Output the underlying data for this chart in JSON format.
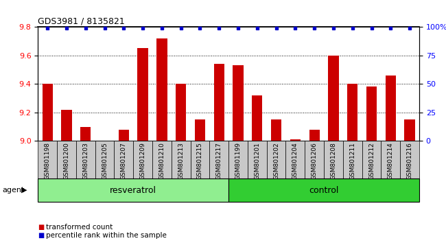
{
  "title": "GDS3981 / 8135821",
  "samples": [
    "GSM801198",
    "GSM801200",
    "GSM801203",
    "GSM801205",
    "GSM801207",
    "GSM801209",
    "GSM801210",
    "GSM801213",
    "GSM801215",
    "GSM801217",
    "GSM801199",
    "GSM801201",
    "GSM801202",
    "GSM801204",
    "GSM801206",
    "GSM801208",
    "GSM801211",
    "GSM801212",
    "GSM801214",
    "GSM801216"
  ],
  "transformed_counts": [
    9.4,
    9.22,
    9.1,
    9.0,
    9.08,
    9.65,
    9.72,
    9.4,
    9.15,
    9.54,
    9.53,
    9.32,
    9.15,
    9.01,
    9.08,
    9.6,
    9.4,
    9.38,
    9.46,
    9.15
  ],
  "percentile_ranks": [
    100,
    100,
    100,
    100,
    100,
    100,
    100,
    100,
    100,
    100,
    100,
    100,
    100,
    100,
    100,
    100,
    100,
    100,
    100,
    100
  ],
  "group_labels": [
    "resveratrol",
    "control"
  ],
  "group_sizes": [
    10,
    10
  ],
  "group_colors_resv": "#90EE90",
  "group_colors_ctrl": "#32CD32",
  "bar_color": "#CC0000",
  "dot_color": "#0000CC",
  "ylim_left": [
    9.0,
    9.8
  ],
  "ylim_right": [
    0,
    100
  ],
  "yticks_left": [
    9.0,
    9.2,
    9.4,
    9.6,
    9.8
  ],
  "yticks_right": [
    0,
    25,
    50,
    75,
    100
  ],
  "ytick_labels_right": [
    "0",
    "25",
    "50",
    "75",
    "100%"
  ],
  "grid_values": [
    9.2,
    9.4,
    9.6
  ],
  "agent_label": "agent",
  "legend_items": [
    "transformed count",
    "percentile rank within the sample"
  ]
}
